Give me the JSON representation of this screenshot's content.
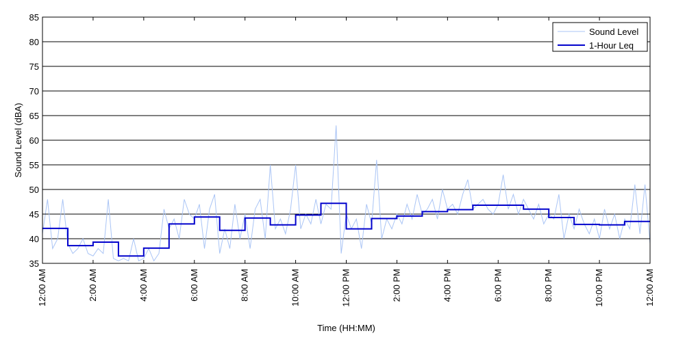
{
  "chart_data": {
    "type": "line",
    "title": "",
    "xlabel": "Time (HH:MM)",
    "ylabel": "Sound Level (dBA)",
    "xlim": [
      0,
      24
    ],
    "ylim": [
      35,
      85
    ],
    "x_unit": "hours",
    "yticks": [
      35,
      40,
      45,
      50,
      55,
      60,
      65,
      70,
      75,
      80,
      85
    ],
    "xticks": [
      {
        "x": 0,
        "label": "12:00 AM"
      },
      {
        "x": 2,
        "label": "2:00 AM"
      },
      {
        "x": 4,
        "label": "4:00 AM"
      },
      {
        "x": 6,
        "label": "6:00 AM"
      },
      {
        "x": 8,
        "label": "8:00 AM"
      },
      {
        "x": 10,
        "label": "10:00 AM"
      },
      {
        "x": 12,
        "label": "12:00 PM"
      },
      {
        "x": 14,
        "label": "2:00 PM"
      },
      {
        "x": 16,
        "label": "4:00 PM"
      },
      {
        "x": 18,
        "label": "6:00 PM"
      },
      {
        "x": 20,
        "label": "8:00 PM"
      },
      {
        "x": 22,
        "label": "10:00 PM"
      },
      {
        "x": 24,
        "label": "12:00 AM"
      }
    ],
    "grid": "horizontal",
    "legend_position": "top-right",
    "series": [
      {
        "name": "Sound Level",
        "color": "#a9c4f5",
        "x": [
          0,
          0.2,
          0.4,
          0.6,
          0.8,
          1.0,
          1.2,
          1.4,
          1.6,
          1.8,
          2.0,
          2.2,
          2.4,
          2.6,
          2.8,
          3.0,
          3.2,
          3.4,
          3.6,
          3.8,
          4.0,
          4.2,
          4.4,
          4.6,
          4.8,
          5.0,
          5.2,
          5.4,
          5.6,
          5.8,
          6.0,
          6.2,
          6.4,
          6.6,
          6.8,
          7.0,
          7.2,
          7.4,
          7.6,
          7.8,
          8.0,
          8.2,
          8.4,
          8.6,
          8.8,
          9.0,
          9.2,
          9.4,
          9.6,
          9.8,
          10.0,
          10.2,
          10.4,
          10.6,
          10.8,
          11.0,
          11.2,
          11.4,
          11.6,
          11.8,
          12.0,
          12.2,
          12.4,
          12.6,
          12.8,
          13.0,
          13.2,
          13.4,
          13.6,
          13.8,
          14.0,
          14.2,
          14.4,
          14.6,
          14.8,
          15.0,
          15.2,
          15.4,
          15.6,
          15.8,
          16.0,
          16.2,
          16.4,
          16.6,
          16.8,
          17.0,
          17.2,
          17.4,
          17.6,
          17.8,
          18.0,
          18.2,
          18.4,
          18.6,
          18.8,
          19.0,
          19.2,
          19.4,
          19.6,
          19.8,
          20.0,
          20.2,
          20.4,
          20.6,
          20.8,
          21.0,
          21.2,
          21.4,
          21.6,
          21.8,
          22.0,
          22.2,
          22.4,
          22.6,
          22.8,
          23.0,
          23.2,
          23.4,
          23.6,
          23.8,
          24.0
        ],
        "values": [
          41,
          48,
          38,
          40,
          48,
          39,
          37,
          38,
          40,
          37,
          36.5,
          38,
          37,
          48,
          36,
          35.5,
          36,
          35.5,
          40,
          35.5,
          36,
          38,
          35.5,
          37,
          46,
          42,
          44,
          40,
          48,
          45,
          44,
          47,
          38,
          46,
          49,
          37,
          42,
          38,
          47,
          40,
          45,
          38,
          46,
          48,
          40,
          55,
          42,
          44,
          41,
          46,
          55,
          42,
          45,
          43,
          48,
          43,
          47,
          46,
          63,
          37,
          45,
          42,
          44,
          38,
          47,
          43,
          56,
          40,
          44,
          42,
          45,
          43,
          47,
          44,
          49,
          45,
          46,
          48,
          44,
          50,
          46,
          47,
          45,
          49,
          52,
          46,
          47,
          48,
          46,
          45,
          47,
          53,
          46,
          49,
          45,
          48,
          46,
          44,
          47,
          43,
          45,
          44,
          49,
          40,
          45,
          42,
          46,
          43,
          41,
          44,
          40,
          46,
          42,
          45,
          40,
          44,
          42,
          51,
          41,
          51,
          39
        ]
      },
      {
        "name": "1-Hour Leq",
        "color": "#0000cc",
        "step": true,
        "x": [
          0,
          1,
          2,
          3,
          4,
          5,
          6,
          7,
          8,
          9,
          10,
          11,
          12,
          13,
          14,
          15,
          16,
          17,
          18,
          19,
          20,
          21,
          22,
          23,
          24
        ],
        "values": [
          42.1,
          38.6,
          39.3,
          36.5,
          38.1,
          43.0,
          44.4,
          41.7,
          44.2,
          42.8,
          44.8,
          47.2,
          42.0,
          44.1,
          44.6,
          45.5,
          45.9,
          46.8,
          46.8,
          46.0,
          44.3,
          42.9,
          42.8,
          43.5,
          43.5
        ]
      }
    ]
  }
}
